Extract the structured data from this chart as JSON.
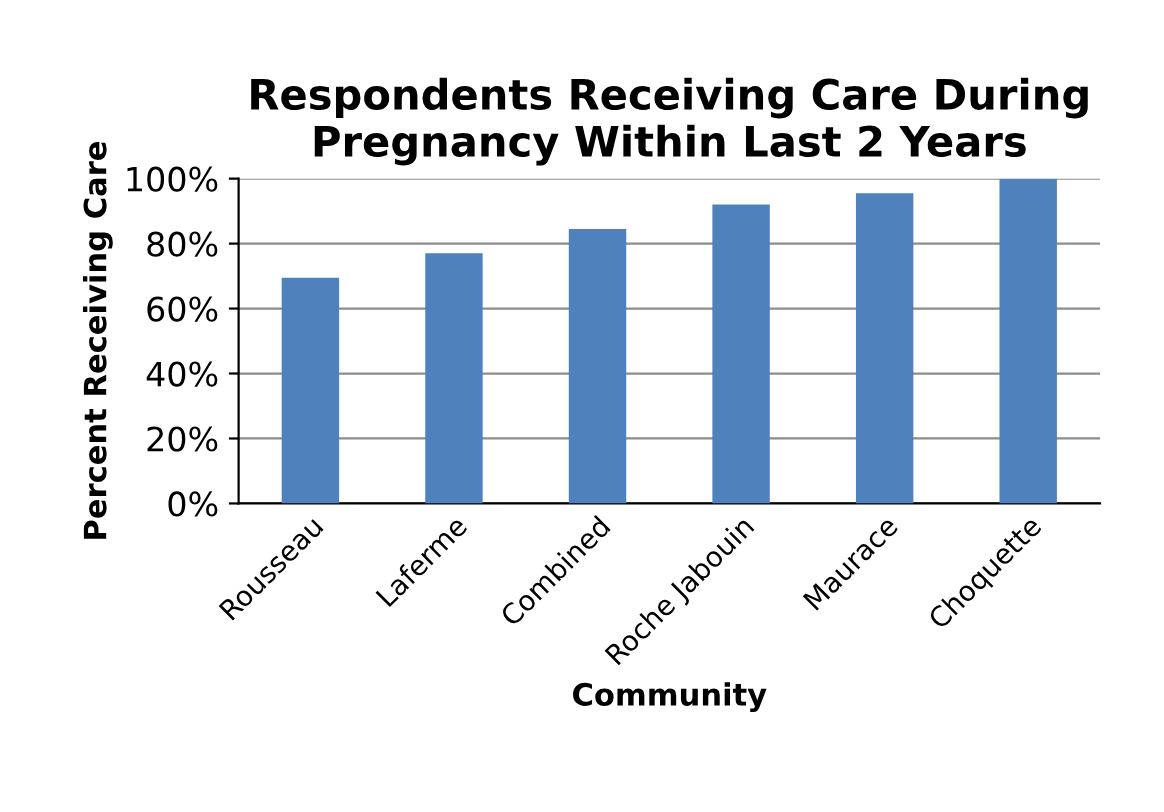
{
  "chart_data": {
    "type": "bar",
    "title": "Respondents Receiving Care During\nPregnancy Within Last 2 Years",
    "xlabel": "Community",
    "ylabel": "Percent Receiving Care",
    "categories": [
      "Rousseau",
      "Laferme",
      "Combined",
      "Roche Jabouin",
      "Maurace",
      "Choquette"
    ],
    "values": [
      69.5,
      77,
      84.5,
      92,
      95.5,
      100
    ],
    "color": "#4f81bd",
    "ylim": [
      0,
      100
    ],
    "yticks": [
      {
        "value": 0,
        "label": "0%"
      },
      {
        "value": 20,
        "label": "20%"
      },
      {
        "value": 40,
        "label": "40%"
      },
      {
        "value": 60,
        "label": "60%"
      },
      {
        "value": 80,
        "label": "80%"
      },
      {
        "value": 100,
        "label": "100%"
      }
    ],
    "grid": "y",
    "legend": false
  }
}
